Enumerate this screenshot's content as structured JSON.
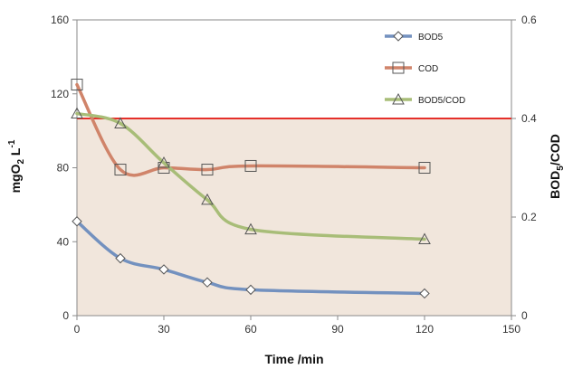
{
  "chart_data": {
    "type": "line",
    "xlabel": "Time /min",
    "ylabel": {
      "main": "mgO",
      "sub": "2",
      "unit": " L",
      "sup": "-1"
    },
    "y2label": {
      "main": "BOD",
      "sub": "5",
      "rest": "/COD"
    },
    "xlim": [
      0,
      150
    ],
    "ylim": [
      0,
      160
    ],
    "y2lim": [
      0,
      0.6
    ],
    "x_ticks": [
      "0",
      "30",
      "60",
      "90",
      "120",
      "150"
    ],
    "y_ticks": [
      "0",
      "40",
      "80",
      "120",
      "160"
    ],
    "y2_ticks": [
      "0",
      "0.2",
      "0.4",
      "0.6"
    ],
    "grid": false,
    "legend_position": "top-right",
    "threshold_line": {
      "axis": "y2",
      "value": 0.4,
      "color": "#e5302a"
    },
    "shaded_region_color": "#f1e6dc",
    "series": [
      {
        "name": "BOD5",
        "axis": "y",
        "color": "#7391bf",
        "marker": "diamond",
        "x": [
          0,
          15,
          30,
          45,
          60,
          120
        ],
        "values": [
          51,
          31,
          25,
          18,
          14,
          12
        ]
      },
      {
        "name": "COD",
        "axis": "y",
        "color": "#d0846a",
        "marker": "square",
        "x": [
          0,
          15,
          30,
          45,
          60,
          120
        ],
        "values": [
          125,
          79,
          80,
          79,
          81,
          80
        ]
      },
      {
        "name": "BOD5/COD",
        "axis": "y2",
        "color": "#a8bd78",
        "marker": "triangle",
        "x": [
          0,
          15,
          30,
          45,
          60,
          120
        ],
        "values": [
          0.41,
          0.39,
          0.31,
          0.235,
          0.175,
          0.155
        ]
      }
    ]
  }
}
